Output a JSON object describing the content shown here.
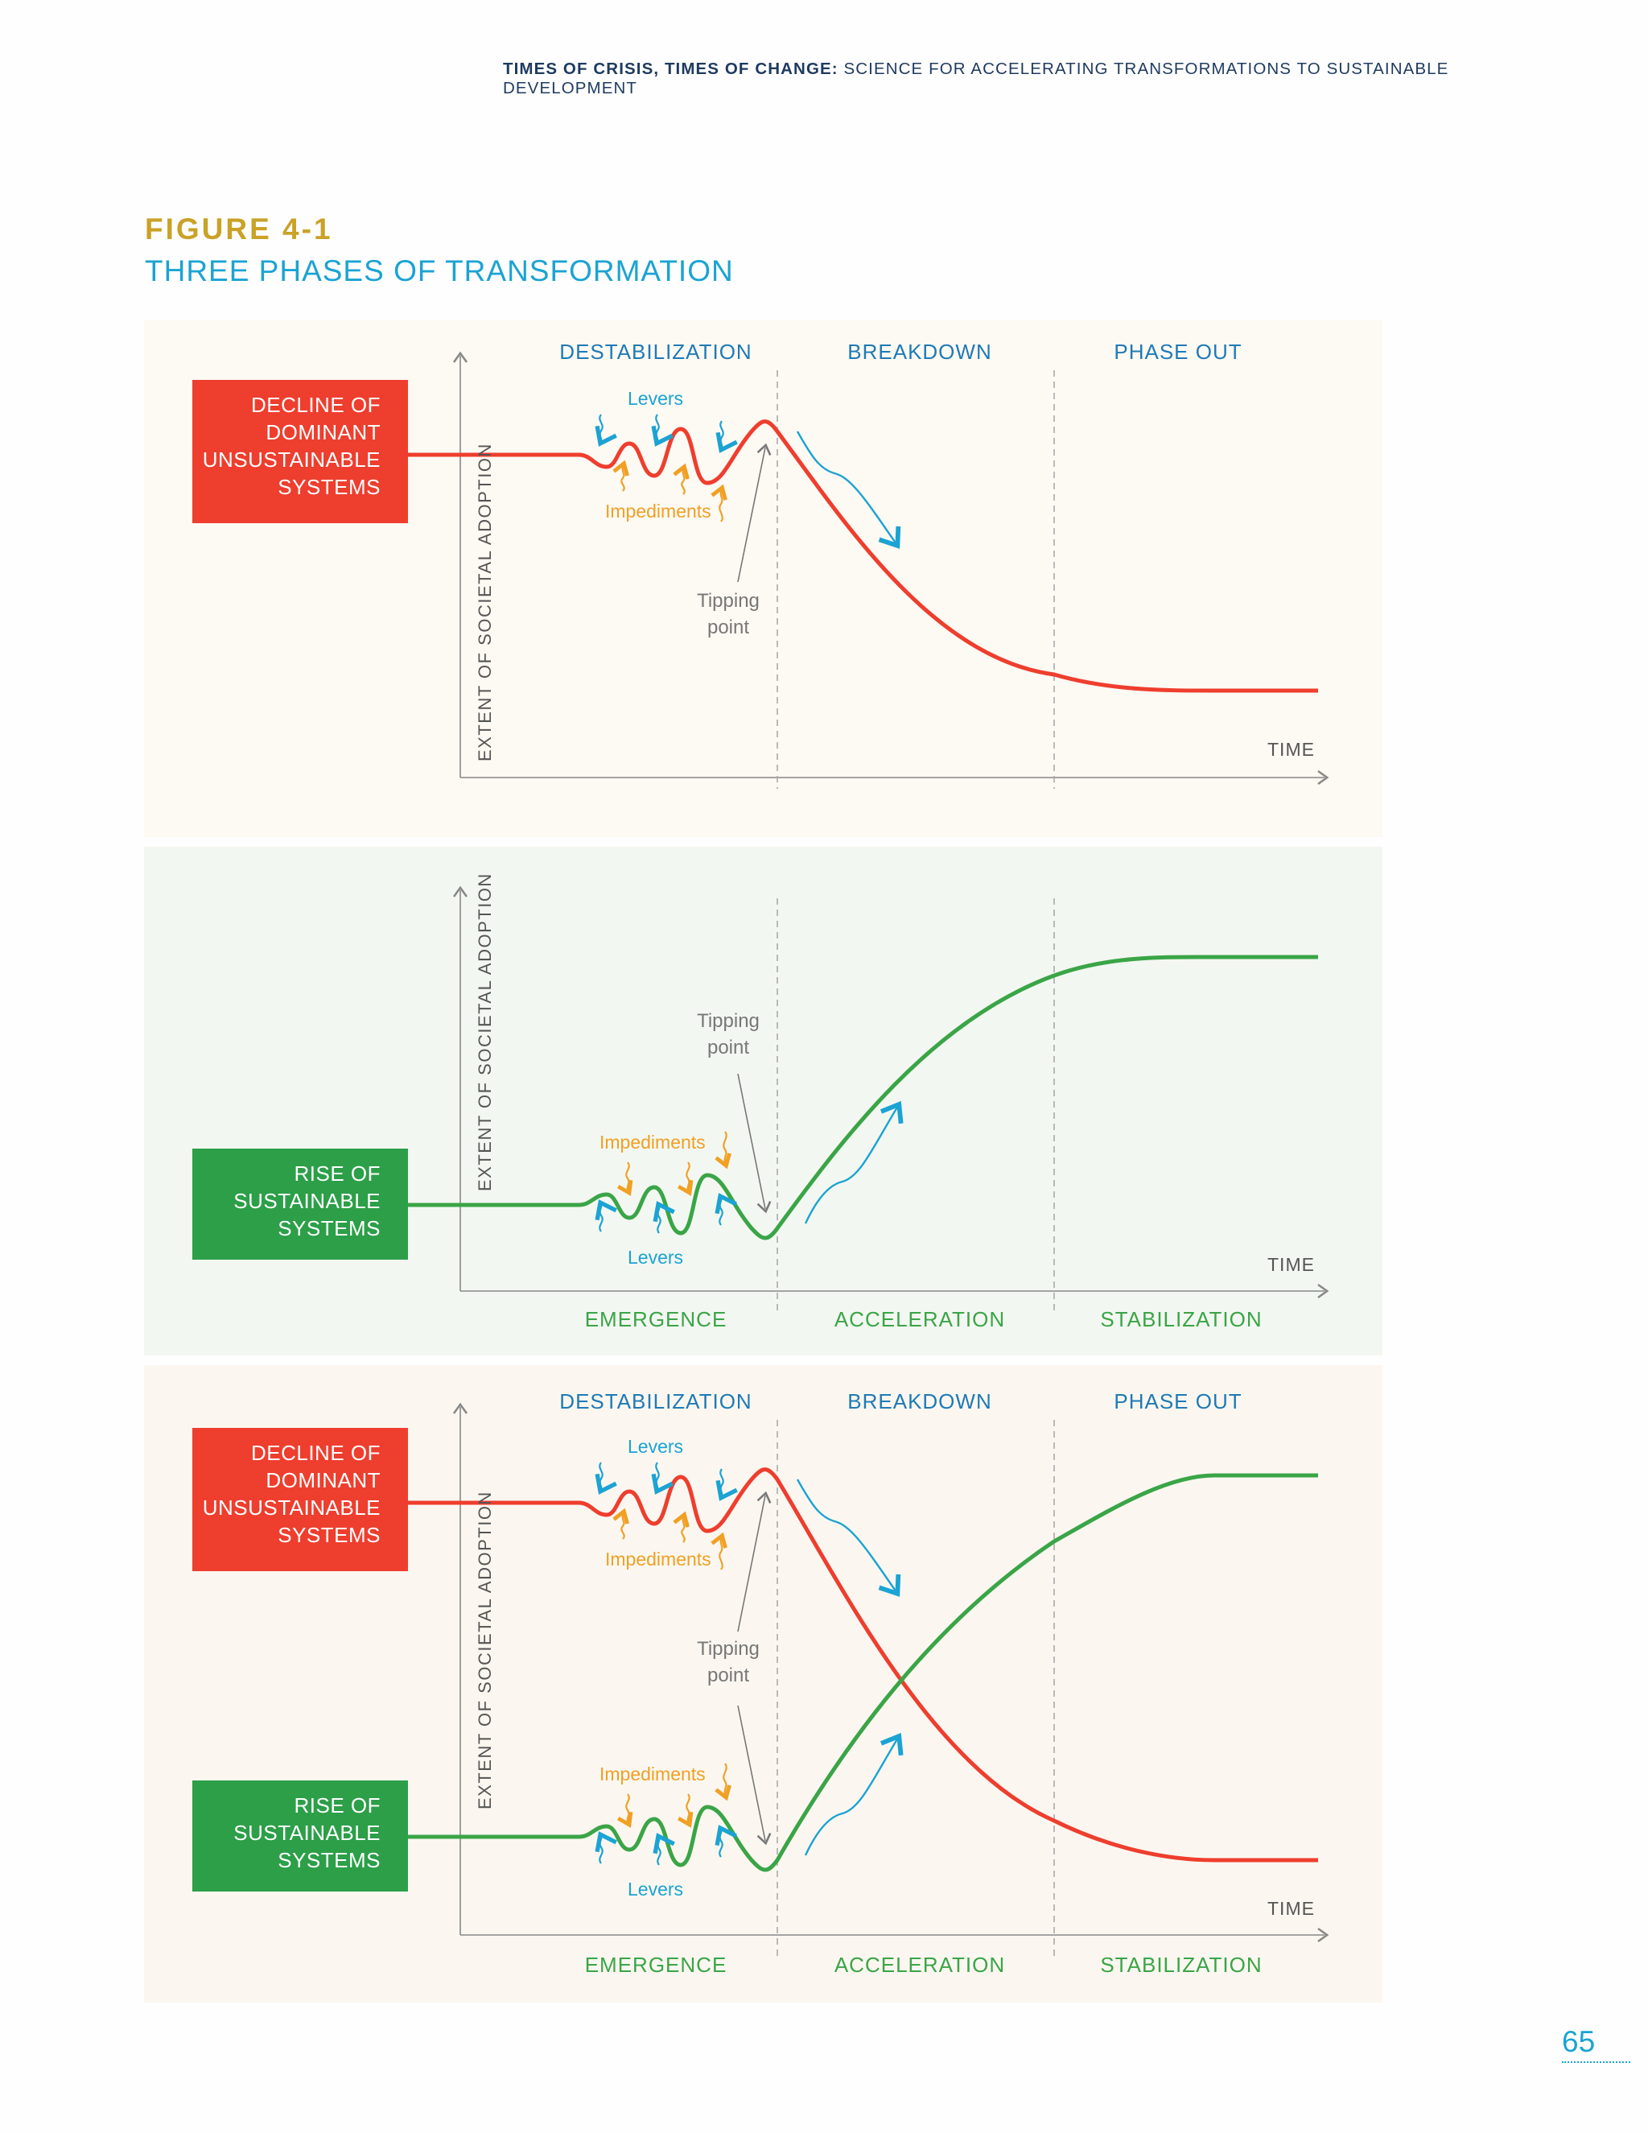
{
  "header": {
    "bold": "TIMES OF CRISIS, TIMES OF CHANGE:",
    "rest": "SCIENCE FOR ACCELERATING TRANSFORMATIONS TO SUSTAINABLE DEVELOPMENT"
  },
  "figure": {
    "label": "FIGURE 4-1",
    "title": "THREE PHASES OF TRANSFORMATION"
  },
  "phases_top": [
    "DESTABILIZATION",
    "BREAKDOWN",
    "PHASE OUT"
  ],
  "phases_bottom": [
    "EMERGENCE",
    "ACCELERATION",
    "STABILIZATION"
  ],
  "boxes": {
    "decline": "DECLINE OF DOMINANT UNSUSTAINABLE SYSTEMS",
    "rise": "RISE OF SUSTAINABLE SYSTEMS"
  },
  "axis": {
    "y": "EXTENT OF SOCIETAL ADOPTION",
    "x": "TIME"
  },
  "labels": {
    "levers": "Levers",
    "impediments": "Impediments",
    "tipping_line1": "Tipping",
    "tipping_line2": "point"
  },
  "colors": {
    "decline": "#ee3e2e",
    "rise": "#3aa547",
    "levers": "#1ba3d3",
    "impediments": "#f0a024",
    "phase_top": "#1f7ab5"
  },
  "page_number": "65"
}
